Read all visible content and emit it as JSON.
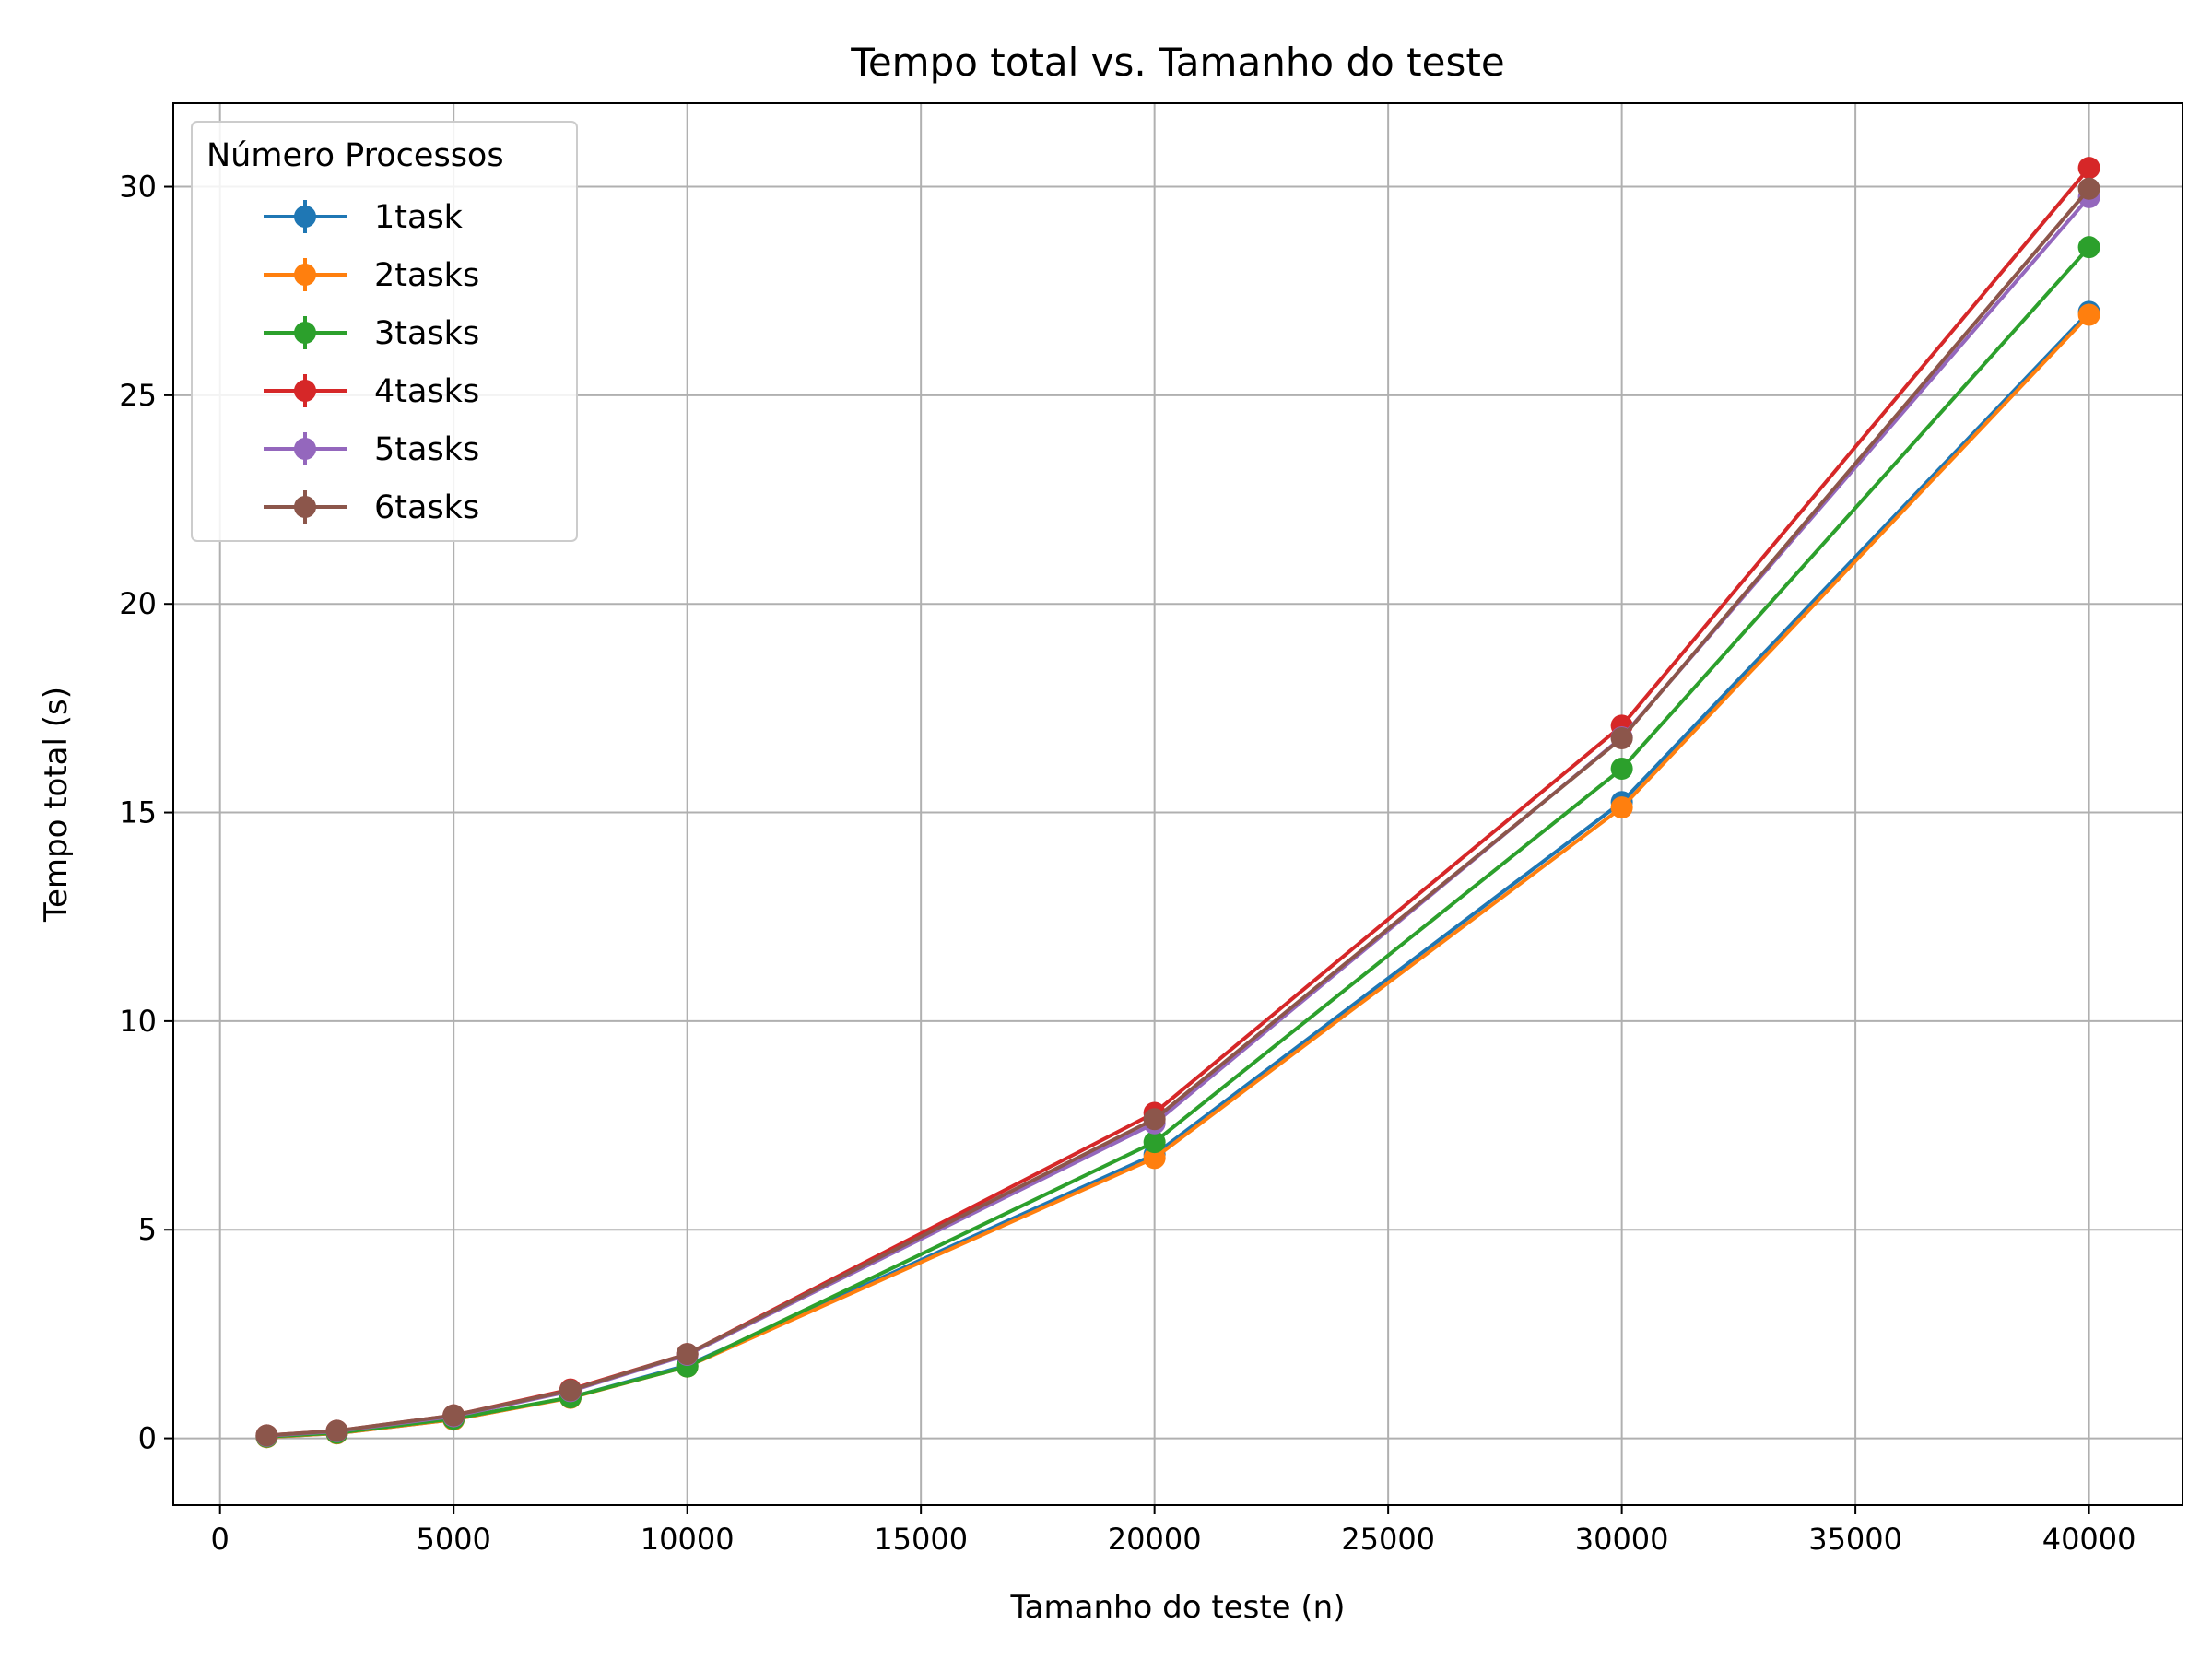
{
  "chart_data": {
    "type": "line",
    "title": "Tempo total vs. Tamanho do teste",
    "xlabel": "Tamanho do teste (n)",
    "ylabel": "Tempo total (s)",
    "xlim": [
      -1000,
      42000
    ],
    "ylim": [
      -1.6,
      32.0
    ],
    "xticks": [
      0,
      5000,
      10000,
      15000,
      20000,
      25000,
      30000,
      35000,
      40000
    ],
    "yticks": [
      0,
      5,
      10,
      15,
      20,
      25,
      30
    ],
    "grid": true,
    "legend": {
      "title": "Número Processos",
      "placement": "top-left"
    },
    "x": [
      1000,
      2500,
      5000,
      7500,
      10000,
      20000,
      30000,
      40000
    ],
    "series": [
      {
        "name": "1task",
        "color": "#1f77b4",
        "values": [
          0.03,
          0.12,
          0.45,
          0.98,
          1.75,
          6.8,
          15.25,
          27.0
        ]
      },
      {
        "name": "2tasks",
        "color": "#ff7f0e",
        "values": [
          0.03,
          0.12,
          0.45,
          0.97,
          1.72,
          6.72,
          15.12,
          26.93
        ]
      },
      {
        "name": "3tasks",
        "color": "#2ca02c",
        "values": [
          0.04,
          0.13,
          0.47,
          0.98,
          1.72,
          7.1,
          16.05,
          28.55
        ]
      },
      {
        "name": "4tasks",
        "color": "#d62728",
        "values": [
          0.07,
          0.18,
          0.55,
          1.17,
          2.02,
          7.8,
          17.08,
          30.45
        ]
      },
      {
        "name": "5tasks",
        "color": "#9467bd",
        "values": [
          0.06,
          0.17,
          0.53,
          1.13,
          2.0,
          7.55,
          16.8,
          29.75
        ]
      },
      {
        "name": "6tasks",
        "color": "#8c564b",
        "values": [
          0.07,
          0.18,
          0.55,
          1.15,
          2.02,
          7.65,
          16.78,
          29.95
        ]
      }
    ]
  }
}
